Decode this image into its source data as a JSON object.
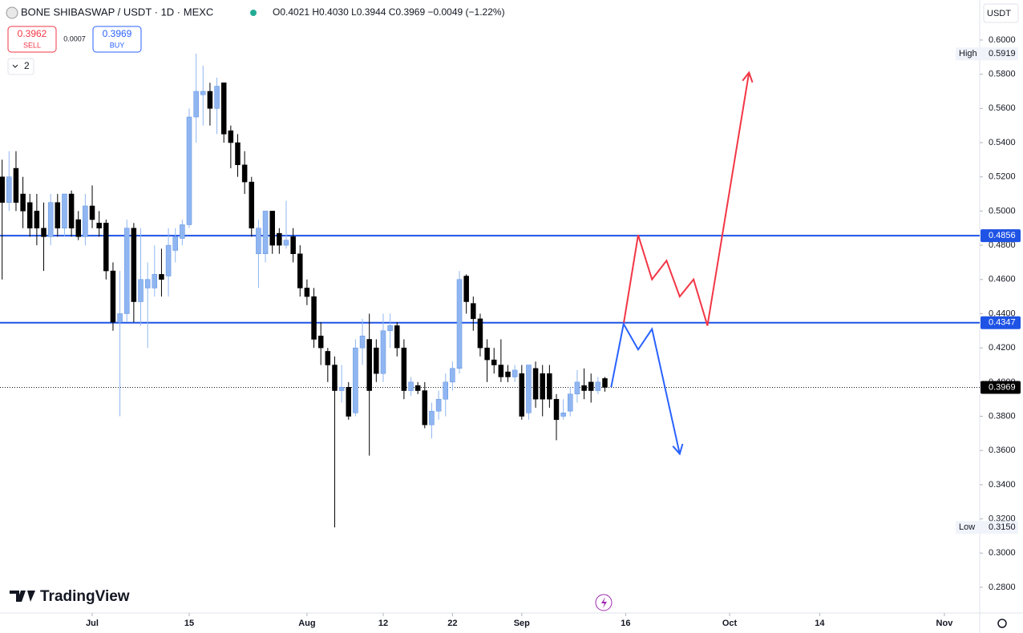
{
  "header": {
    "symbol": "BONE SHIBASWAP / USDT · 1D · MEXC",
    "ohlc": "O0.4021 H0.4030 L0.3944 C0.3969 −0.0049 (−1.22%)",
    "sell_price": 0.3962,
    "sell_label": "SELL",
    "spread": 0.0007,
    "buy_price": 0.3969,
    "buy_label": "BUY",
    "indicators_count": "2",
    "currency": "USDT",
    "brand": "TradingView"
  },
  "chart_data": {
    "type": "candlestick",
    "x": [
      -13,
      -12,
      -11,
      -10,
      -9,
      -8,
      -7,
      -6,
      -5,
      -4,
      -3,
      -2,
      -1,
      0,
      1,
      2,
      3,
      4,
      5,
      6,
      7,
      8,
      9,
      10,
      11,
      12,
      13,
      14,
      15,
      16,
      17,
      18,
      19,
      20,
      21,
      22,
      23,
      24,
      25,
      26,
      27,
      28,
      29,
      30,
      31,
      32,
      33,
      34,
      35,
      36,
      37,
      38,
      39,
      40,
      41,
      42,
      43,
      44,
      45,
      46,
      47,
      48,
      49,
      50,
      51,
      52,
      53,
      54,
      55,
      56,
      57,
      58,
      59,
      60,
      61,
      62,
      63,
      64,
      65,
      66,
      67,
      68,
      69,
      70,
      71,
      72,
      73,
      74
    ],
    "open": [
      0.52,
      0.505,
      0.525,
      0.51,
      0.505,
      0.5,
      0.49,
      0.485,
      0.505,
      0.49,
      0.51,
      0.495,
      0.485,
      0.503,
      0.493,
      0.493,
      0.465,
      0.435,
      0.44,
      0.49,
      0.447,
      0.455,
      0.455,
      0.463,
      0.462,
      0.477,
      0.484,
      0.492,
      0.555,
      0.568,
      0.57,
      0.56,
      0.575,
      0.547,
      0.54,
      0.527,
      0.517,
      0.475,
      0.475,
      0.5,
      0.487,
      0.48,
      0.485,
      0.475,
      0.455,
      0.45,
      0.427,
      0.418,
      0.41,
      0.395,
      0.397,
      0.382,
      0.42,
      0.425,
      0.42,
      0.405,
      0.43,
      0.433,
      0.42,
      0.395,
      0.398,
      0.395,
      0.375,
      0.383,
      0.39,
      0.4,
      0.408,
      0.462,
      0.446,
      0.437,
      0.42,
      0.413,
      0.41,
      0.406,
      0.403,
      0.405,
      0.382,
      0.408,
      0.405,
      0.405,
      0.39,
      0.38,
      0.383,
      0.393,
      0.398,
      0.4,
      0.395,
      0.4021
    ],
    "high": [
      0.53,
      0.535,
      0.535,
      0.52,
      0.51,
      0.51,
      0.505,
      0.51,
      0.51,
      0.51,
      0.512,
      0.5,
      0.51,
      0.515,
      0.5,
      0.495,
      0.47,
      0.465,
      0.495,
      0.493,
      0.49,
      0.47,
      0.48,
      0.478,
      0.49,
      0.49,
      0.495,
      0.56,
      0.592,
      0.585,
      0.575,
      0.578,
      0.575,
      0.55,
      0.545,
      0.535,
      0.52,
      0.495,
      0.5,
      0.5,
      0.49,
      0.506,
      0.49,
      0.48,
      0.46,
      0.455,
      0.435,
      0.42,
      0.415,
      0.41,
      0.4,
      0.425,
      0.437,
      0.44,
      0.425,
      0.44,
      0.44,
      0.435,
      0.425,
      0.403,
      0.4,
      0.4,
      0.388,
      0.395,
      0.405,
      0.412,
      0.465,
      0.463,
      0.45,
      0.44,
      0.425,
      0.42,
      0.425,
      0.41,
      0.41,
      0.41,
      0.41,
      0.412,
      0.41,
      0.41,
      0.393,
      0.39,
      0.397,
      0.407,
      0.408,
      0.405,
      0.403,
      0.403
    ],
    "low": [
      0.46,
      0.5,
      0.5,
      0.49,
      0.485,
      0.48,
      0.465,
      0.48,
      0.485,
      0.485,
      0.485,
      0.483,
      0.48,
      0.49,
      0.485,
      0.46,
      0.43,
      0.38,
      0.435,
      0.435,
      0.433,
      0.42,
      0.45,
      0.45,
      0.45,
      0.47,
      0.48,
      0.49,
      0.54,
      0.55,
      0.55,
      0.545,
      0.54,
      0.525,
      0.52,
      0.51,
      0.485,
      0.455,
      0.47,
      0.475,
      0.475,
      0.478,
      0.47,
      0.45,
      0.445,
      0.42,
      0.41,
      0.4,
      0.315,
      0.388,
      0.378,
      0.38,
      0.41,
      0.357,
      0.4,
      0.4,
      0.42,
      0.415,
      0.39,
      0.392,
      0.393,
      0.373,
      0.367,
      0.378,
      0.38,
      0.395,
      0.405,
      0.44,
      0.43,
      0.415,
      0.4,
      0.405,
      0.4,
      0.4,
      0.4,
      0.378,
      0.378,
      0.385,
      0.38,
      0.385,
      0.366,
      0.378,
      0.38,
      0.388,
      0.39,
      0.388,
      0.393,
      0.3944
    ],
    "close": [
      0.505,
      0.52,
      0.505,
      0.5,
      0.49,
      0.49,
      0.485,
      0.505,
      0.49,
      0.51,
      0.49,
      0.485,
      0.503,
      0.495,
      0.49,
      0.465,
      0.435,
      0.44,
      0.49,
      0.447,
      0.46,
      0.46,
      0.463,
      0.46,
      0.48,
      0.485,
      0.492,
      0.555,
      0.57,
      0.57,
      0.56,
      0.573,
      0.545,
      0.54,
      0.527,
      0.517,
      0.49,
      0.49,
      0.5,
      0.48,
      0.48,
      0.483,
      0.475,
      0.455,
      0.45,
      0.425,
      0.42,
      0.41,
      0.395,
      0.397,
      0.38,
      0.42,
      0.427,
      0.395,
      0.405,
      0.43,
      0.433,
      0.42,
      0.395,
      0.4,
      0.395,
      0.375,
      0.383,
      0.39,
      0.4,
      0.408,
      0.46,
      0.447,
      0.437,
      0.42,
      0.413,
      0.41,
      0.403,
      0.403,
      0.407,
      0.38,
      0.41,
      0.39,
      0.39,
      0.39,
      0.378,
      0.382,
      0.393,
      0.4,
      0.395,
      0.395,
      0.4,
      0.3969
    ],
    "up_color": "#90b6f2",
    "down_color": "#000000",
    "xlim": [
      -13.31,
      128.1
    ],
    "xticks": [
      {
        "value": 0,
        "label": "Jul"
      },
      {
        "value": 14,
        "label": "15"
      },
      {
        "value": 31,
        "label": "Aug"
      },
      {
        "value": 42,
        "label": "12"
      },
      {
        "value": 52,
        "label": "22"
      },
      {
        "value": 62,
        "label": "Sep"
      },
      {
        "value": 77,
        "label": "16"
      },
      {
        "value": 92,
        "label": "Oct"
      },
      {
        "value": 105,
        "label": "14"
      },
      {
        "value": 123,
        "label": "Nov"
      }
    ],
    "ylim": [
      0.265,
      0.6234
    ],
    "yticks": [
      {
        "value": 0.6,
        "label": "0.6000"
      },
      {
        "value": 0.58,
        "label": "0.5800"
      },
      {
        "value": 0.56,
        "label": "0.5600"
      },
      {
        "value": 0.54,
        "label": "0.5400"
      },
      {
        "value": 0.52,
        "label": "0.5200"
      },
      {
        "value": 0.5,
        "label": "0.5000"
      },
      {
        "value": 0.48,
        "label": "0.4800"
      },
      {
        "value": 0.46,
        "label": "0.4600"
      },
      {
        "value": 0.44,
        "label": "0.4400"
      },
      {
        "value": 0.42,
        "label": "0.4200"
      },
      {
        "value": 0.4,
        "label": "0.4000"
      },
      {
        "value": 0.38,
        "label": "0.3800"
      },
      {
        "value": 0.36,
        "label": "0.3600"
      },
      {
        "value": 0.34,
        "label": "0.3400"
      },
      {
        "value": 0.32,
        "label": "0.3200"
      },
      {
        "value": 0.3,
        "label": "0.3000"
      },
      {
        "value": 0.28,
        "label": "0.2800"
      }
    ],
    "levels": [
      {
        "value": 0.4856,
        "color": "#1e53e5"
      },
      {
        "value": 0.4347,
        "color": "#1e53e5"
      }
    ],
    "last_price": 0.3969,
    "high_marker": {
      "name": "High",
      "value": 0.5919
    },
    "low_marker": {
      "name": "Low",
      "value": {
        "value": 0.315,
        "label": "0.3150"
      }
    },
    "drawings": [
      {
        "color": "#f23645",
        "x": [
          76.7,
          78.8,
          80.8,
          82.9,
          84.8,
          86.8,
          88.8,
          94.8
        ],
        "values": [
          0.434,
          0.486,
          0.46,
          0.471,
          0.45,
          0.46,
          0.433,
          0.581
        ]
      },
      {
        "color": "#2962ff",
        "x": [
          74.9,
          76.7,
          78.8,
          80.8,
          84.8
        ],
        "values": [
          0.397,
          0.434,
          0.419,
          0.431,
          0.358
        ]
      }
    ]
  }
}
